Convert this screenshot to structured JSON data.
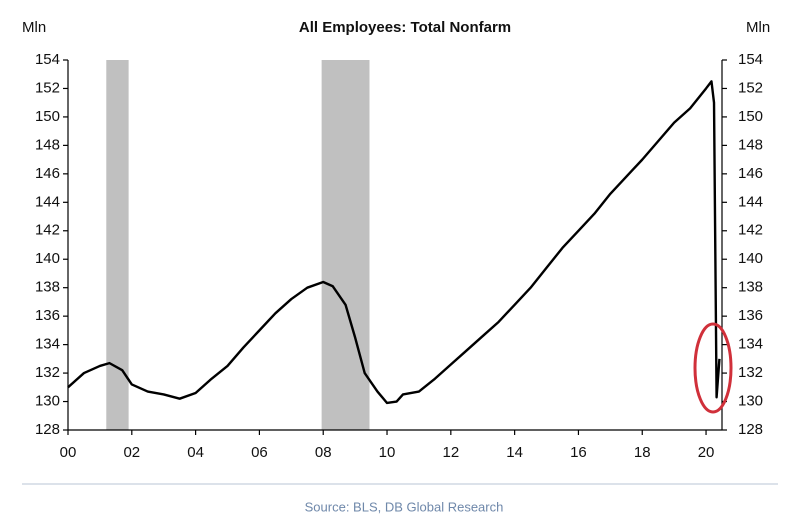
{
  "chart_data": {
    "type": "line",
    "title": "All Employees: Total Nonfarm",
    "y_label": "Mln",
    "y2_label": "Mln",
    "source": "Source: BLS, DB Global Research",
    "color": "#000000",
    "shade_color": "#c0c0c0",
    "shaded_ranges": [
      [
        2001.2,
        2001.9
      ],
      [
        2007.95,
        2009.45
      ]
    ],
    "x": [
      2000.0,
      2000.5,
      2001.0,
      2001.3,
      2001.7,
      2002.0,
      2002.5,
      2003.0,
      2003.5,
      2004.0,
      2004.5,
      2005.0,
      2005.5,
      2006.0,
      2006.5,
      2007.0,
      2007.5,
      2008.0,
      2008.3,
      2008.7,
      2009.0,
      2009.3,
      2009.7,
      2010.0,
      2010.3,
      2010.5,
      2011.0,
      2011.5,
      2012.0,
      2012.5,
      2013.0,
      2013.5,
      2014.0,
      2014.5,
      2015.0,
      2015.5,
      2016.0,
      2016.5,
      2017.0,
      2017.5,
      2018.0,
      2018.5,
      2019.0,
      2019.5,
      2020.0,
      2020.17,
      2020.25,
      2020.33,
      2020.42
    ],
    "values": [
      131.0,
      132.0,
      132.5,
      132.7,
      132.2,
      131.2,
      130.7,
      130.5,
      130.2,
      130.6,
      131.6,
      132.5,
      133.8,
      135.0,
      136.2,
      137.2,
      138.0,
      138.4,
      138.1,
      136.8,
      134.5,
      132.0,
      130.7,
      129.9,
      130.0,
      130.5,
      130.7,
      131.6,
      132.6,
      133.6,
      134.6,
      135.6,
      136.8,
      138.0,
      139.4,
      140.8,
      142.0,
      143.2,
      144.6,
      145.8,
      147.0,
      148.3,
      149.6,
      150.6,
      152.0,
      152.5,
      151.0,
      130.3,
      133.0
    ],
    "xlim": [
      2000,
      2020.5
    ],
    "xticks": [
      {
        "value": 2000,
        "label": "00"
      },
      {
        "value": 2002,
        "label": "02"
      },
      {
        "value": 2004,
        "label": "04"
      },
      {
        "value": 2006,
        "label": "06"
      },
      {
        "value": 2008,
        "label": "08"
      },
      {
        "value": 2010,
        "label": "10"
      },
      {
        "value": 2012,
        "label": "12"
      },
      {
        "value": 2014,
        "label": "14"
      },
      {
        "value": 2016,
        "label": "16"
      },
      {
        "value": 2018,
        "label": "18"
      },
      {
        "value": 2020,
        "label": "20"
      }
    ],
    "ylim": [
      128,
      154
    ],
    "yticks": [
      128,
      130,
      132,
      134,
      136,
      138,
      140,
      142,
      144,
      146,
      148,
      150,
      152,
      154
    ],
    "y2lim": [
      128,
      154
    ],
    "y2ticks": [
      128,
      130,
      132,
      134,
      136,
      138,
      140,
      142,
      144,
      146,
      148,
      150,
      152,
      154
    ]
  }
}
